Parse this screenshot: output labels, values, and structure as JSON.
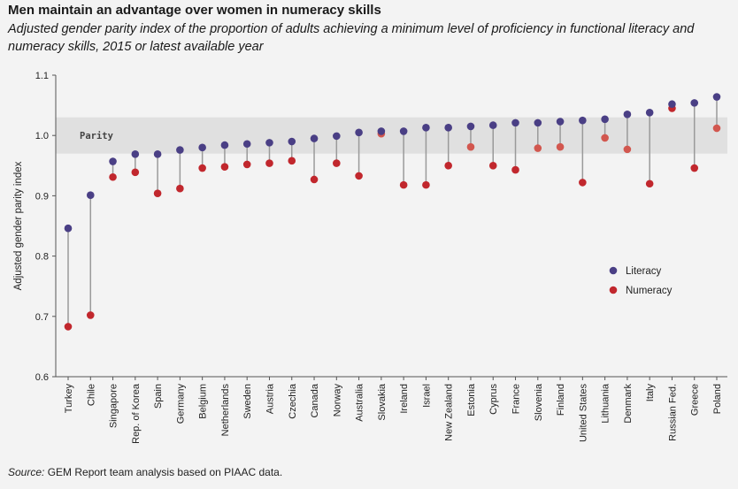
{
  "header": {
    "title": "Men maintain an advantage over women in numeracy skills",
    "subtitle": "Adjusted gender parity index of the proportion of adults achieving a minimum level of proficiency in functional literacy and numeracy skills, 2015 or latest available year"
  },
  "footer": {
    "source_prefix": "Source:",
    "source_text": "GEM Report team analysis based on PIAAC data."
  },
  "colors": {
    "literacy": "#4a3f85",
    "numeracy_below": "#c1272d",
    "numeracy_within": "#d2574f",
    "connector": "#9a9a9a",
    "band": "#e0e0e0",
    "background": "#f3f3f3"
  },
  "chart_data": {
    "type": "scatter",
    "title": "Men maintain an advantage over women in numeracy skills",
    "ylabel": "Adjusted gender parity index",
    "xlabel": "",
    "ylim": [
      0.6,
      1.1
    ],
    "yticks": [
      "0.6",
      "0.7",
      "0.8",
      "0.9",
      "1.0",
      "1.1"
    ],
    "grid": false,
    "legend_position": "right",
    "band": {
      "label": "Parity",
      "from": 0.97,
      "to": 1.03
    },
    "categories": [
      "Turkey",
      "Chile",
      "Singapore",
      "Rep. of Korea",
      "Spain",
      "Germany",
      "Belgium",
      "Netherlands",
      "Sweden",
      "Austria",
      "Czechia",
      "Canada",
      "Norway",
      "Australia",
      "Slovakia",
      "Ireland",
      "Israel",
      "New Zealand",
      "Estonia",
      "Cyprus",
      "France",
      "Slovenia",
      "Finland",
      "United States",
      "Lithuania",
      "Denmark",
      "Italy",
      "Russian Fed.",
      "Greece",
      "Poland"
    ],
    "series": [
      {
        "name": "Literacy",
        "values": [
          0.846,
          0.901,
          0.957,
          0.969,
          0.969,
          0.976,
          0.98,
          0.984,
          0.986,
          0.988,
          0.99,
          0.995,
          0.999,
          1.005,
          1.007,
          1.007,
          1.013,
          1.013,
          1.015,
          1.017,
          1.021,
          1.021,
          1.023,
          1.025,
          1.027,
          1.035,
          1.038,
          1.052,
          1.054,
          1.064
        ]
      },
      {
        "name": "Numeracy",
        "values": [
          0.683,
          0.702,
          0.931,
          0.939,
          0.904,
          0.912,
          0.946,
          0.948,
          0.952,
          0.954,
          0.958,
          0.927,
          0.954,
          0.933,
          1.003,
          0.918,
          0.918,
          0.95,
          0.981,
          0.95,
          0.943,
          0.979,
          0.981,
          0.922,
          0.996,
          0.977,
          0.92,
          1.045,
          0.946,
          1.012
        ]
      }
    ]
  }
}
